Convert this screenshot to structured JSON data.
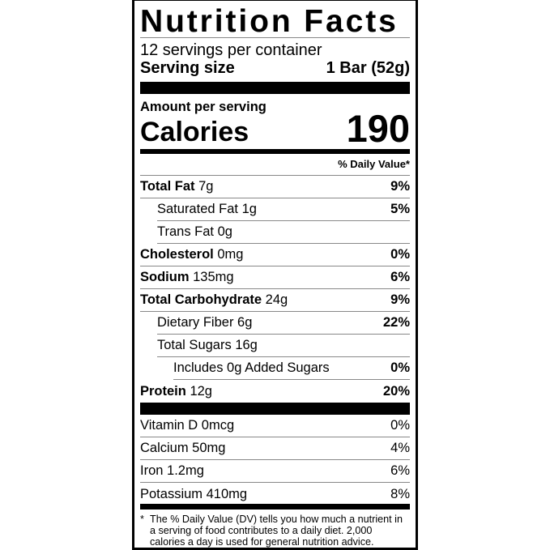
{
  "title": "Nutrition Facts",
  "servings_per_container": "12 servings per container",
  "serving_size": {
    "label": "Serving size",
    "value": "1 Bar (52g)"
  },
  "amount_per_serving": "Amount per serving",
  "calories": {
    "label": "Calories",
    "value": "190"
  },
  "daily_value_header": "% Daily Value*",
  "nutrients": [
    {
      "name": "Total Fat",
      "amount": "7g",
      "dv": "9%",
      "bold": true,
      "indent": 0
    },
    {
      "name": "Saturated Fat",
      "amount": "1g",
      "dv": "5%",
      "bold": false,
      "indent": 1
    },
    {
      "name": "Trans Fat",
      "amount": "0g",
      "dv": "",
      "bold": false,
      "indent": 1
    },
    {
      "name": "Cholesterol",
      "amount": "0mg",
      "dv": "0%",
      "bold": true,
      "indent": 0
    },
    {
      "name": "Sodium",
      "amount": "135mg",
      "dv": "6%",
      "bold": true,
      "indent": 0
    },
    {
      "name": "Total Carbohydrate",
      "amount": "24g",
      "dv": "9%",
      "bold": true,
      "indent": 0
    },
    {
      "name": "Dietary Fiber",
      "amount": "6g",
      "dv": "22%",
      "bold": false,
      "indent": 1
    },
    {
      "name": "Total Sugars",
      "amount": "16g",
      "dv": "",
      "bold": false,
      "indent": 1
    },
    {
      "name": "Includes 0g Added Sugars",
      "amount": "",
      "dv": "0%",
      "bold": false,
      "indent": 2
    },
    {
      "name": "Protein",
      "amount": "12g",
      "dv": "20%",
      "bold": true,
      "indent": 0
    }
  ],
  "vitamins": [
    {
      "name": "Vitamin D 0mcg",
      "dv": "0%"
    },
    {
      "name": "Calcium 50mg",
      "dv": "4%"
    },
    {
      "name": "Iron 1.2mg",
      "dv": "6%"
    },
    {
      "name": "Potassium 410mg",
      "dv": "8%"
    }
  ],
  "footnote": {
    "star": "*",
    "text": "The % Daily Value (DV) tells you how much a nutrient in a serving of food contributes to a daily diet. 2,000 calories a day is used for general nutrition advice."
  }
}
